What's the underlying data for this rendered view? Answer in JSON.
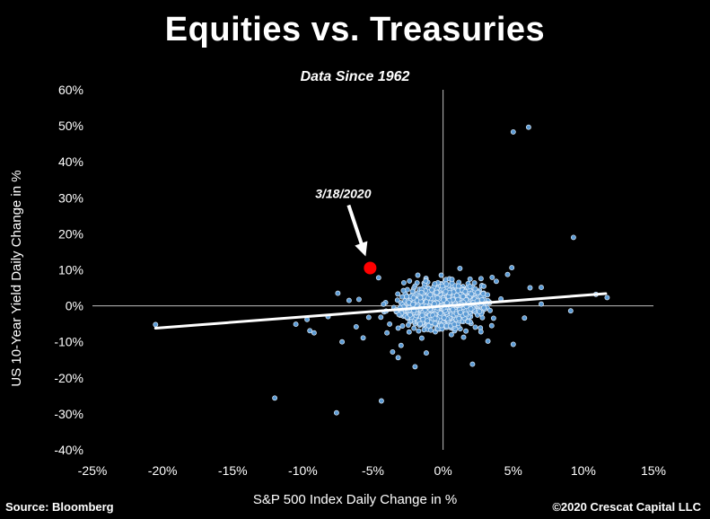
{
  "chart_data": {
    "type": "scatter",
    "title": "Equities vs. Treasuries",
    "subtitle": "Data Since 1962",
    "xlabel": "S&P 500 Index Daily Change in %",
    "ylabel": "US 10-Year Yield Daily Change in %",
    "xlim": [
      -25,
      15
    ],
    "ylim": [
      -40,
      60
    ],
    "x_ticks": [
      "-25%",
      "-20%",
      "-15%",
      "-10%",
      "-5%",
      "0%",
      "5%",
      "10%",
      "15%"
    ],
    "y_ticks": [
      "60%",
      "50%",
      "40%",
      "30%",
      "20%",
      "10%",
      "0%",
      "-10%",
      "-20%",
      "-30%",
      "-40%"
    ],
    "grid": false,
    "point_color": "#5b9bd5",
    "highlight_color": "#ff0000",
    "trendline_color": "#ffffff",
    "highlight": {
      "label": "3/18/2020",
      "x": -5.2,
      "y": 10.5
    },
    "trendline": {
      "x": [
        -20.5,
        11.6
      ],
      "y": [
        -6.2,
        3.4
      ]
    },
    "outliers": [
      [
        5,
        48.3
      ],
      [
        6.1,
        49.6
      ],
      [
        9.3,
        19
      ],
      [
        -12,
        -25.6
      ],
      [
        -7.6,
        -29.7
      ],
      [
        -4.4,
        -26.4
      ],
      [
        -20.5,
        -5.2
      ],
      [
        -9.2,
        -7.5
      ],
      [
        -9.5,
        -6.9
      ],
      [
        -7.5,
        3.5
      ],
      [
        -7.2,
        -10
      ],
      [
        -6.7,
        1.5
      ],
      [
        -4.6,
        7.8
      ],
      [
        -2,
        -16.9
      ],
      [
        2.1,
        -16.2
      ],
      [
        5,
        -10.7
      ],
      [
        9.1,
        -1.4
      ],
      [
        10.9,
        3.2
      ],
      [
        11.7,
        2.3
      ],
      [
        4.9,
        10.6
      ],
      [
        1.2,
        10.4
      ],
      [
        -3.2,
        -14.4
      ],
      [
        -4,
        -7.5
      ],
      [
        -3,
        -11
      ],
      [
        -5.3,
        -3.2
      ],
      [
        -6,
        1.8
      ],
      [
        -8.2,
        -3
      ],
      [
        -9.7,
        -3.8
      ],
      [
        7,
        5.1
      ],
      [
        6.2,
        5
      ],
      [
        7,
        0.5
      ],
      [
        -2.8,
        6.4
      ],
      [
        3.2,
        -9.8
      ],
      [
        -3.6,
        -12.8
      ],
      [
        -1.2,
        -13.1
      ],
      [
        2.7,
        -7.2
      ],
      [
        4.6,
        8.7
      ],
      [
        -6.2,
        -5.8
      ],
      [
        -10.5,
        -5.1
      ],
      [
        5.8,
        -3.4
      ],
      [
        -1.8,
        8.5
      ],
      [
        3.5,
        7.9
      ],
      [
        -5.7,
        -8.9
      ],
      [
        -2.6,
        2.6
      ]
    ]
  },
  "footer": {
    "source": "Source: Bloomberg",
    "copyright": "©2020 Crescat Capital LLC"
  }
}
